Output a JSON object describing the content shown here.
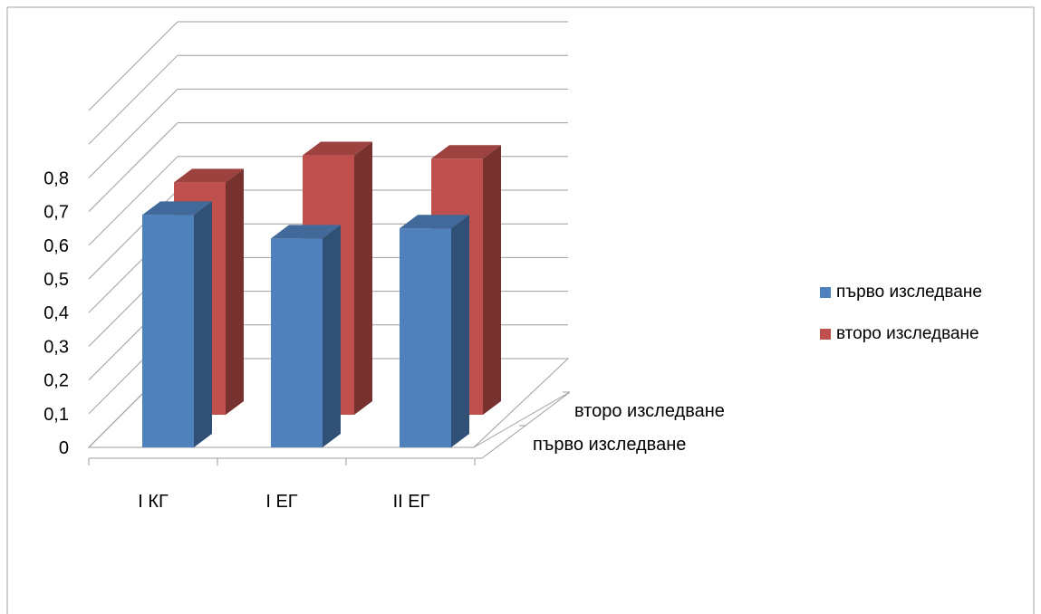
{
  "chart_data": {
    "type": "bar",
    "categories": [
      "I КГ",
      "I ЕГ",
      "II ЕГ"
    ],
    "series": [
      {
        "name": "първо изследване",
        "values": [
          0.69,
          0.62,
          0.65
        ],
        "color": "#4F81BD"
      },
      {
        "name": "второ изследване",
        "values": [
          0.69,
          0.77,
          0.76
        ],
        "color": "#C0504D"
      }
    ],
    "depth_labels": [
      "второ изследване",
      "първо изследване"
    ],
    "y_ticks": [
      "0",
      "0,1",
      "0,2",
      "0,3",
      "0,4",
      "0,5",
      "0,6",
      "0,7",
      "0,8"
    ],
    "ylim": [
      0,
      0.8
    ],
    "grid": true,
    "legend_position": "right",
    "title": "",
    "xlabel": "",
    "ylabel": ""
  }
}
